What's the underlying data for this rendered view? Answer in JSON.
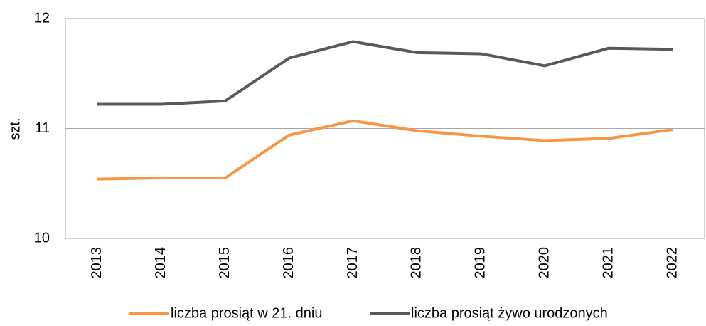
{
  "chart_data": {
    "type": "line",
    "y_label": "szt.",
    "categories": [
      "2013",
      "2014",
      "2015",
      "2016",
      "2017",
      "2018",
      "2019",
      "2020",
      "2021",
      "2022"
    ],
    "series": [
      {
        "name": "liczba prosiąt w 21. dniu",
        "color": "#f79646",
        "values": [
          10.54,
          10.55,
          10.55,
          10.94,
          11.07,
          10.98,
          10.93,
          10.89,
          10.91,
          10.99
        ]
      },
      {
        "name": "liczba prosiąt żywo urodzonych",
        "color": "#595959",
        "values": [
          11.22,
          11.22,
          11.25,
          11.64,
          11.79,
          11.69,
          11.68,
          11.57,
          11.73,
          11.72
        ]
      }
    ],
    "ylim": [
      10,
      12
    ],
    "yticks": [
      10,
      11,
      12
    ],
    "grid": true
  }
}
